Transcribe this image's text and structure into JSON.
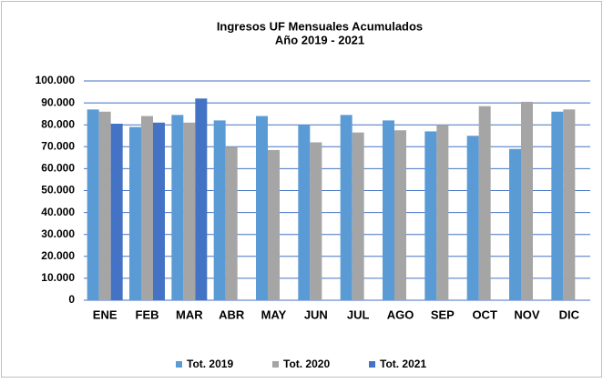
{
  "chart_data": {
    "type": "bar",
    "title": "Ingresos UF Mensuales Acumulados",
    "subtitle": "Año 2019 - 2021",
    "categories": [
      "ENE",
      "FEB",
      "MAR",
      "ABR",
      "MAY",
      "JUN",
      "JUL",
      "AGO",
      "SEP",
      "OCT",
      "NOV",
      "DIC"
    ],
    "series": [
      {
        "name": "Tot. 2019",
        "color": "#5b9bd5",
        "values": [
          87000,
          79000,
          84500,
          82000,
          84000,
          80000,
          84500,
          82000,
          77000,
          75000,
          69000,
          86000
        ]
      },
      {
        "name": "Tot. 2020",
        "color": "#a5a5a5",
        "values": [
          86000,
          84000,
          81000,
          70000,
          68500,
          72000,
          76500,
          77500,
          80000,
          88500,
          90500,
          87000
        ]
      },
      {
        "name": "Tot. 2021",
        "color": "#4472c4",
        "values": [
          80500,
          81000,
          92000,
          null,
          null,
          null,
          null,
          null,
          null,
          null,
          null,
          null
        ]
      }
    ],
    "ylim": [
      0,
      100000
    ],
    "yticks": [
      0,
      {
        "value": 10000,
        "label": "10.000"
      },
      {
        "value": 20000,
        "label": "20.000"
      },
      {
        "value": 30000,
        "label": "30.000"
      },
      {
        "value": 40000,
        "label": "40.000"
      },
      {
        "value": 50000,
        "label": "50.000"
      },
      {
        "value": 60000,
        "label": "60.000"
      },
      {
        "value": 70000,
        "label": "70.000"
      },
      {
        "value": 80000,
        "label": "80.000"
      },
      {
        "value": 90000,
        "label": "90.000"
      },
      {
        "value": 100000,
        "label": "100.000"
      }
    ],
    "grid": true,
    "legend": "bottom"
  }
}
